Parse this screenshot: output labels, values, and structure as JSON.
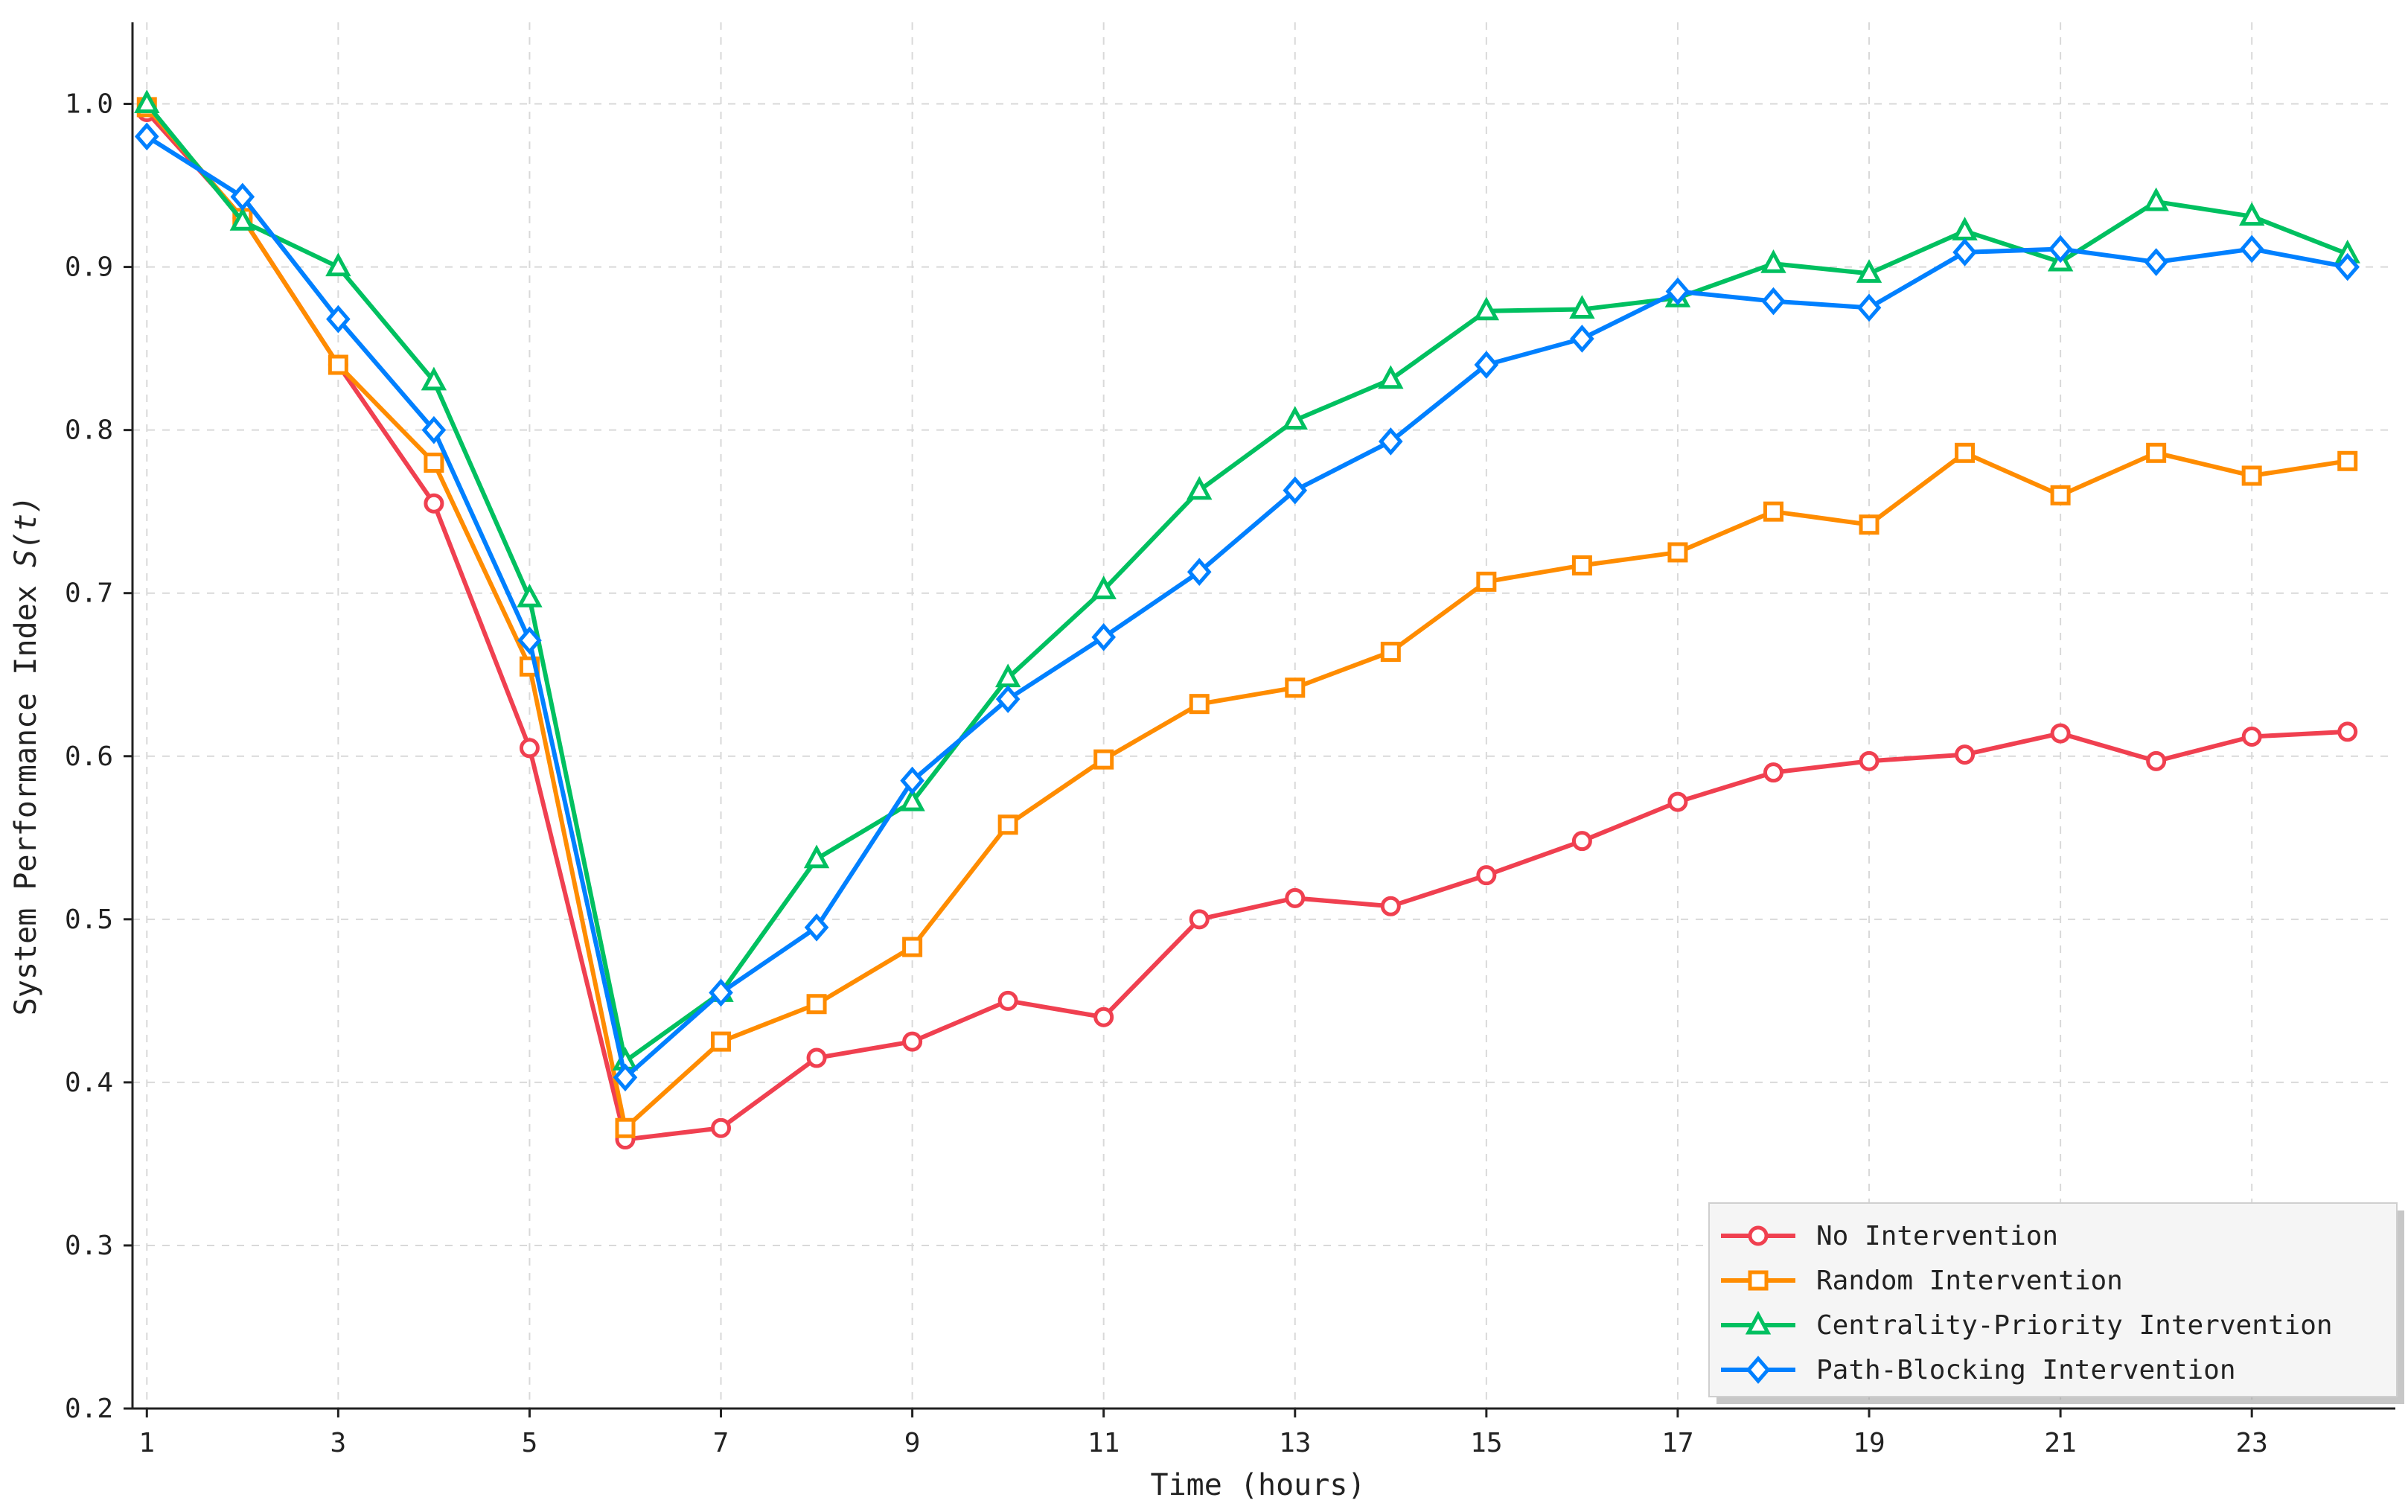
{
  "chart_data": {
    "type": "line",
    "xlabel": "Time (hours)",
    "ylabel_prefix": "System Performance Index ",
    "ylabel_var": "S(t)",
    "x": [
      1,
      2,
      3,
      4,
      5,
      6,
      7,
      8,
      9,
      10,
      11,
      12,
      13,
      14,
      15,
      16,
      17,
      18,
      19,
      20,
      21,
      22,
      23,
      24
    ],
    "xticks": [
      1,
      3,
      5,
      7,
      9,
      11,
      13,
      15,
      17,
      19,
      21,
      23
    ],
    "yticks": [
      0.2,
      0.3,
      0.4,
      0.5,
      0.6,
      0.7,
      0.8,
      0.9,
      1.0
    ],
    "ytick_labels": [
      "0.2",
      "0.3",
      "0.4",
      "0.5",
      "0.6",
      "0.7",
      "0.8",
      "0.9",
      "1.0"
    ],
    "xlim": [
      0.85,
      24.5
    ],
    "ylim": [
      0.2,
      1.05
    ],
    "grid": true,
    "legend_position": "bottom-right",
    "series": [
      {
        "name": "No Intervention",
        "color": "#f04050",
        "marker": "circle",
        "values": [
          0.995,
          0.93,
          0.84,
          0.755,
          0.605,
          0.365,
          0.372,
          0.415,
          0.425,
          0.45,
          0.44,
          0.5,
          0.513,
          0.508,
          0.527,
          0.548,
          0.572,
          0.59,
          0.597,
          0.601,
          0.614,
          0.597,
          0.612,
          0.615
        ]
      },
      {
        "name": "Random Intervention",
        "color": "#ff8c00",
        "marker": "square",
        "values": [
          0.998,
          0.93,
          0.84,
          0.78,
          0.655,
          0.372,
          0.425,
          0.448,
          0.483,
          0.558,
          0.598,
          0.632,
          0.642,
          0.664,
          0.707,
          0.717,
          0.725,
          0.75,
          0.742,
          0.786,
          0.76,
          0.786,
          0.772,
          0.781
        ]
      },
      {
        "name": "Centrality-Priority Intervention",
        "color": "#00c060",
        "marker": "triangle",
        "values": [
          1.0,
          0.928,
          0.9,
          0.83,
          0.697,
          0.413,
          0.455,
          0.537,
          0.572,
          0.648,
          0.702,
          0.763,
          0.806,
          0.831,
          0.873,
          0.874,
          0.881,
          0.902,
          0.896,
          0.922,
          0.903,
          0.94,
          0.931,
          0.908
        ]
      },
      {
        "name": "Path-Blocking Intervention",
        "color": "#0080ff",
        "marker": "diamond",
        "values": [
          0.98,
          0.943,
          0.868,
          0.8,
          0.671,
          0.403,
          0.455,
          0.495,
          0.585,
          0.635,
          0.673,
          0.713,
          0.763,
          0.793,
          0.84,
          0.856,
          0.885,
          0.879,
          0.875,
          0.909,
          0.911,
          0.903,
          0.911,
          0.9
        ]
      }
    ]
  }
}
